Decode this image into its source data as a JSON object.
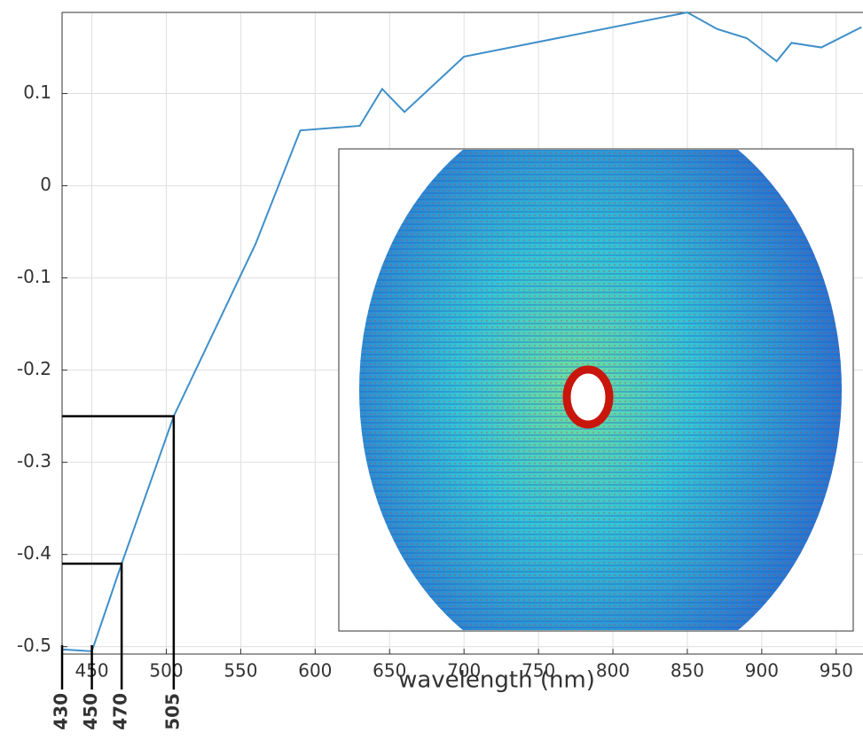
{
  "chart_data": {
    "type": "line",
    "x_label": "wavelength (nm)",
    "x": [
      430,
      450,
      470,
      505,
      560,
      590,
      630,
      645,
      660,
      700,
      850,
      870,
      890,
      910,
      920,
      940,
      967
    ],
    "series": [
      {
        "color": "#3f8fc9",
        "values": [
          -0.503,
          -0.505,
          -0.41,
          -0.25,
          -0.063,
          0.06,
          0.065,
          0.105,
          0.08,
          0.14,
          0.188,
          0.17,
          0.16,
          0.135,
          0.155,
          0.15,
          0.172
        ]
      }
    ],
    "xlim": [
      430,
      968
    ],
    "ylim": [
      -0.508,
      0.188
    ],
    "xticks": [
      450,
      500,
      550,
      600,
      650,
      700,
      750,
      800,
      850,
      900,
      950
    ],
    "yticks": [
      0.1,
      0,
      -0.1,
      -0.2,
      -0.3,
      -0.4,
      -0.5
    ],
    "grid": true,
    "annotations": [
      {
        "x": 430
      },
      {
        "x": 450
      },
      {
        "x": 470,
        "y": -0.41
      },
      {
        "x": 505,
        "y": -0.25
      }
    ]
  }
}
